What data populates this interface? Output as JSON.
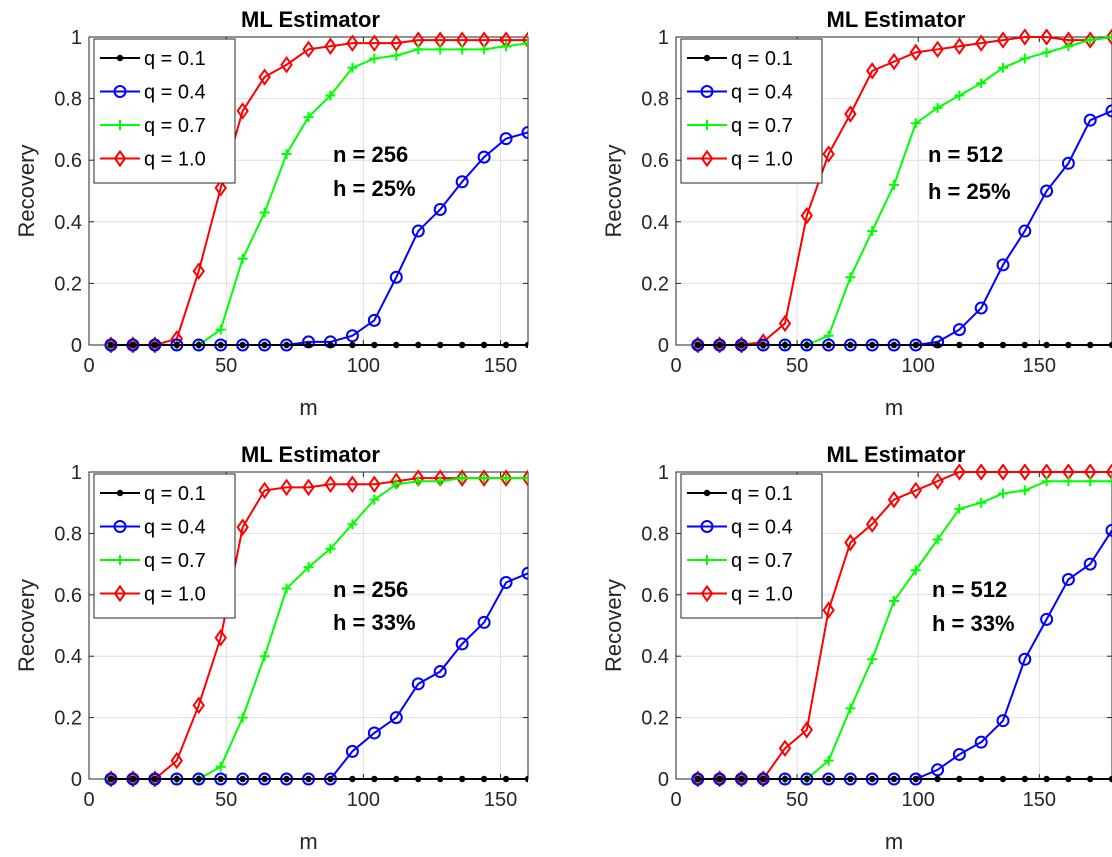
{
  "chart_data": [
    {
      "type": "line",
      "title": "ML Estimator",
      "xlabel": "m",
      "ylabel": "Recovery",
      "xlim": [
        0,
        160
      ],
      "ylim": [
        0,
        1
      ],
      "xticks": [
        "0",
        "50",
        "100",
        "150"
      ],
      "yticks": [
        "0",
        "0.2",
        "0.4",
        "0.6",
        "0.8",
        "1"
      ],
      "grid": true,
      "legend": "top-left",
      "annotations": [
        "n = 256",
        "h = 25%"
      ],
      "x": [
        8,
        16,
        24,
        32,
        40,
        48,
        56,
        64,
        72,
        80,
        88,
        96,
        104,
        112,
        120,
        128,
        136,
        144,
        152,
        160
      ],
      "series": [
        {
          "name": "q = 0.1",
          "color": "#000000",
          "marker": "dot",
          "values": [
            0,
            0,
            0,
            0,
            0,
            0,
            0,
            0,
            0,
            0,
            0,
            0,
            0,
            0,
            0,
            0,
            0,
            0,
            0,
            0
          ]
        },
        {
          "name": "q = 0.4",
          "color": "#0000ff",
          "marker": "circle",
          "values": [
            0,
            0,
            0,
            0,
            0,
            0,
            0,
            0,
            0,
            0.01,
            0.01,
            0.03,
            0.08,
            0.22,
            0.37,
            0.44,
            0.53,
            0.61,
            0.67,
            0.69
          ]
        },
        {
          "name": "q = 0.7",
          "color": "#00ff00",
          "marker": "plus",
          "values": [
            0,
            0,
            0,
            0,
            0,
            0.05,
            0.28,
            0.43,
            0.62,
            0.74,
            0.81,
            0.9,
            0.93,
            0.94,
            0.96,
            0.96,
            0.96,
            0.96,
            0.97,
            0.98
          ]
        },
        {
          "name": "q = 1.0",
          "color": "#ff0000",
          "marker": "diamond",
          "values": [
            0,
            0,
            0,
            0.02,
            0.24,
            0.51,
            0.76,
            0.87,
            0.91,
            0.96,
            0.97,
            0.98,
            0.98,
            0.98,
            0.99,
            0.99,
            0.99,
            0.99,
            0.99,
            0.99
          ]
        }
      ]
    },
    {
      "type": "line",
      "title": "ML Estimator",
      "xlabel": "m",
      "ylabel": "Recovery",
      "xlim": [
        0,
        180
      ],
      "ylim": [
        0,
        1
      ],
      "xticks": [
        "0",
        "50",
        "100",
        "150"
      ],
      "yticks": [
        "0",
        "0.2",
        "0.4",
        "0.6",
        "0.8",
        "1"
      ],
      "grid": true,
      "legend": "top-left",
      "annotations": [
        "n = 512",
        "h = 25%"
      ],
      "x": [
        9,
        18,
        27,
        36,
        45,
        54,
        63,
        72,
        81,
        90,
        99,
        108,
        117,
        126,
        135,
        144,
        153,
        162,
        171,
        180
      ],
      "series": [
        {
          "name": "q = 0.1",
          "color": "#000000",
          "marker": "dot",
          "values": [
            0,
            0,
            0,
            0,
            0,
            0,
            0,
            0,
            0,
            0,
            0,
            0,
            0,
            0,
            0,
            0,
            0,
            0,
            0,
            0
          ]
        },
        {
          "name": "q = 0.4",
          "color": "#0000ff",
          "marker": "circle",
          "values": [
            0,
            0,
            0,
            0,
            0,
            0,
            0,
            0,
            0,
            0,
            0,
            0.01,
            0.05,
            0.12,
            0.26,
            0.37,
            0.5,
            0.59,
            0.73,
            0.76
          ]
        },
        {
          "name": "q = 0.7",
          "color": "#00ff00",
          "marker": "plus",
          "values": [
            0,
            0,
            0,
            0,
            0,
            0,
            0.03,
            0.22,
            0.37,
            0.52,
            0.72,
            0.77,
            0.81,
            0.85,
            0.9,
            0.93,
            0.95,
            0.97,
            0.99,
            1.0
          ]
        },
        {
          "name": "q = 1.0",
          "color": "#ff0000",
          "marker": "diamond",
          "values": [
            0,
            0,
            0,
            0.01,
            0.07,
            0.42,
            0.62,
            0.75,
            0.89,
            0.92,
            0.95,
            0.96,
            0.97,
            0.98,
            0.99,
            1.0,
            1.0,
            0.99,
            0.99,
            1.0
          ]
        }
      ]
    },
    {
      "type": "line",
      "title": "ML Estimator",
      "xlabel": "m",
      "ylabel": "Recovery",
      "xlim": [
        0,
        160
      ],
      "ylim": [
        0,
        1
      ],
      "xticks": [
        "0",
        "50",
        "100",
        "150"
      ],
      "yticks": [
        "0",
        "0.2",
        "0.4",
        "0.6",
        "0.8",
        "1"
      ],
      "grid": true,
      "legend": "top-left",
      "annotations": [
        "n = 256",
        "h = 33%"
      ],
      "x": [
        8,
        16,
        24,
        32,
        40,
        48,
        56,
        64,
        72,
        80,
        88,
        96,
        104,
        112,
        120,
        128,
        136,
        144,
        152,
        160
      ],
      "series": [
        {
          "name": "q = 0.1",
          "color": "#000000",
          "marker": "dot",
          "values": [
            0,
            0,
            0,
            0,
            0,
            0,
            0,
            0,
            0,
            0,
            0,
            0,
            0,
            0,
            0,
            0,
            0,
            0,
            0,
            0
          ]
        },
        {
          "name": "q = 0.4",
          "color": "#0000ff",
          "marker": "circle",
          "values": [
            0,
            0,
            0,
            0,
            0,
            0,
            0,
            0,
            0,
            0,
            0,
            0.09,
            0.15,
            0.2,
            0.31,
            0.35,
            0.44,
            0.51,
            0.64,
            0.67
          ]
        },
        {
          "name": "q = 0.7",
          "color": "#00ff00",
          "marker": "plus",
          "values": [
            0,
            0,
            0,
            0,
            0,
            0.04,
            0.2,
            0.4,
            0.62,
            0.69,
            0.75,
            0.83,
            0.91,
            0.96,
            0.97,
            0.97,
            0.98,
            0.98,
            0.98,
            0.98
          ]
        },
        {
          "name": "q = 1.0",
          "color": "#ff0000",
          "marker": "diamond",
          "values": [
            0,
            0,
            0,
            0.06,
            0.24,
            0.46,
            0.82,
            0.94,
            0.95,
            0.95,
            0.96,
            0.96,
            0.96,
            0.97,
            0.98,
            0.98,
            0.98,
            0.98,
            0.98,
            0.98
          ]
        }
      ]
    },
    {
      "type": "line",
      "title": "ML Estimator",
      "xlabel": "m",
      "ylabel": "Recovery",
      "xlim": [
        0,
        180
      ],
      "ylim": [
        0,
        1
      ],
      "xticks": [
        "0",
        "50",
        "100",
        "150"
      ],
      "yticks": [
        "0",
        "0.2",
        "0.4",
        "0.6",
        "0.8",
        "1"
      ],
      "grid": true,
      "legend": "top-left",
      "annotations": [
        "n = 512",
        "h = 33%"
      ],
      "x": [
        9,
        18,
        27,
        36,
        45,
        54,
        63,
        72,
        81,
        90,
        99,
        108,
        117,
        126,
        135,
        144,
        153,
        162,
        171,
        180
      ],
      "series": [
        {
          "name": "q = 0.1",
          "color": "#000000",
          "marker": "dot",
          "values": [
            0,
            0,
            0,
            0,
            0,
            0,
            0,
            0,
            0,
            0,
            0,
            0,
            0,
            0,
            0,
            0,
            0,
            0,
            0,
            0
          ]
        },
        {
          "name": "q = 0.4",
          "color": "#0000ff",
          "marker": "circle",
          "values": [
            0,
            0,
            0,
            0,
            0,
            0,
            0,
            0,
            0,
            0,
            0,
            0.03,
            0.08,
            0.12,
            0.19,
            0.39,
            0.52,
            0.65,
            0.7,
            0.81
          ]
        },
        {
          "name": "q = 0.7",
          "color": "#00ff00",
          "marker": "plus",
          "values": [
            0,
            0,
            0,
            0,
            0,
            0,
            0.06,
            0.23,
            0.39,
            0.58,
            0.68,
            0.78,
            0.88,
            0.9,
            0.93,
            0.94,
            0.97,
            0.97,
            0.97,
            0.97
          ]
        },
        {
          "name": "q = 1.0",
          "color": "#ff0000",
          "marker": "diamond",
          "values": [
            0,
            0,
            0,
            0,
            0.1,
            0.16,
            0.55,
            0.77,
            0.83,
            0.91,
            0.94,
            0.97,
            1.0,
            1.0,
            1.0,
            1.0,
            1.0,
            1.0,
            1.0,
            1.0
          ]
        }
      ]
    }
  ]
}
